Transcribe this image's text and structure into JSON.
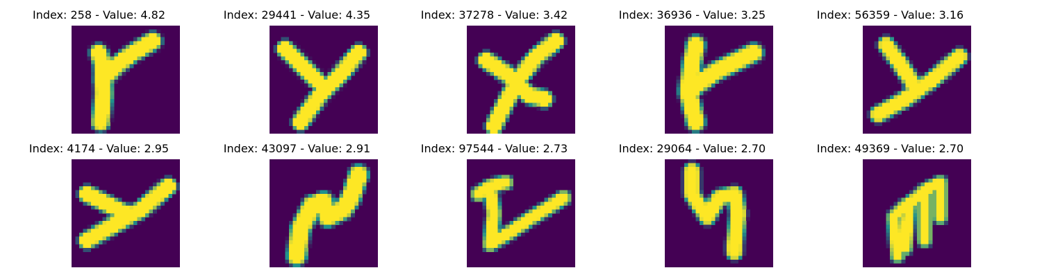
{
  "colors": {
    "background": "#440154",
    "stroke": "#fde725",
    "edge": "#21918c"
  },
  "panels": [
    {
      "label": "Index: 258 - Value: 4.82",
      "glyph": "y1"
    },
    {
      "label": "Index: 29441 - Value: 4.35",
      "glyph": "y2"
    },
    {
      "label": "Index: 37278 - Value: 3.42",
      "glyph": "x"
    },
    {
      "label": "Index: 36936 - Value: 3.25",
      "glyph": "y3"
    },
    {
      "label": "Index: 56359 - Value: 3.16",
      "glyph": "y4"
    },
    {
      "label": "Index: 4174 - Value: 2.95",
      "glyph": "y5"
    },
    {
      "label": "Index: 43097 - Value: 2.91",
      "glyph": "n"
    },
    {
      "label": "Index: 97544 - Value: 2.73",
      "glyph": "z"
    },
    {
      "label": "Index: 29064 - Value: 2.70",
      "glyph": "s"
    },
    {
      "label": "Index: 49369 - Value: 2.70",
      "glyph": "m"
    }
  ]
}
